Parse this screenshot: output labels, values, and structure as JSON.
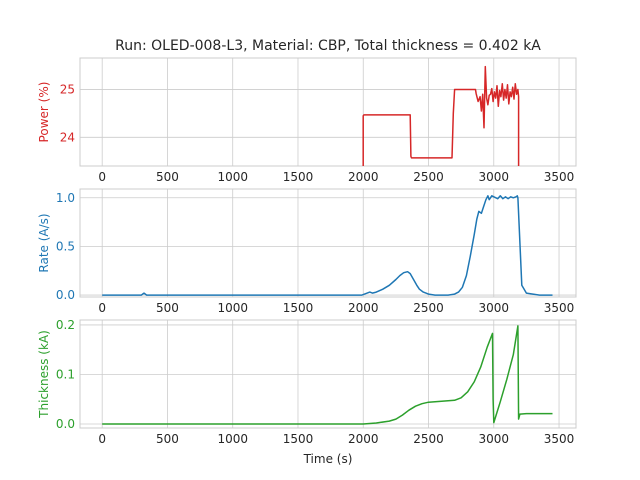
{
  "chart_data": {
    "type": "line",
    "title": "Run: OLED-008-L3, Material: CBP, Total thickness = 0.402 kA",
    "xlabel": "Time (s)",
    "xlim": [
      -170,
      3630
    ],
    "xticks": [
      0,
      500,
      1000,
      1500,
      2000,
      2500,
      3000,
      3500
    ],
    "grid": true,
    "panels": [
      {
        "id": "power",
        "ylabel": "Power (%)",
        "color": "#d62728",
        "ylim": [
          23.4,
          25.66
        ],
        "yticks": [
          24,
          25
        ],
        "x": [
          2000,
          2000,
          2005,
          2360,
          2365,
          2370,
          2680,
          2690,
          2700,
          2860,
          2865,
          2880,
          2895,
          2905,
          2915,
          2925,
          2935,
          2945,
          2955,
          2965,
          2975,
          2985,
          2995,
          3005,
          3015,
          3025,
          3035,
          3045,
          3055,
          3065,
          3075,
          3085,
          3095,
          3105,
          3115,
          3125,
          3135,
          3145,
          3155,
          3165,
          3175,
          3185,
          3190,
          3190
        ],
        "values": [
          23.4,
          24.45,
          24.47,
          24.47,
          23.6,
          23.57,
          23.57,
          24.5,
          25.0,
          25.0,
          24.92,
          24.75,
          24.85,
          24.55,
          24.9,
          24.2,
          25.48,
          24.82,
          24.68,
          24.88,
          24.9,
          25.02,
          24.75,
          24.95,
          24.82,
          25.08,
          24.65,
          24.98,
          24.85,
          25.12,
          24.78,
          25.0,
          24.82,
          25.1,
          24.7,
          24.95,
          24.85,
          25.05,
          24.8,
          25.12,
          24.9,
          25.0,
          24.85,
          23.4
        ]
      },
      {
        "id": "rate",
        "ylabel": "Rate (A/s)",
        "color": "#1f77b4",
        "ylim": [
          -0.02,
          1.09
        ],
        "yticks": [
          0.0,
          0.5,
          1.0
        ],
        "yticklabels": [
          "0.0",
          "0.5",
          "1.0"
        ],
        "x": [
          0,
          300,
          320,
          340,
          360,
          1000,
          1500,
          1990,
          2030,
          2050,
          2070,
          2100,
          2150,
          2200,
          2250,
          2280,
          2310,
          2340,
          2360,
          2390,
          2410,
          2430,
          2460,
          2500,
          2550,
          2600,
          2650,
          2700,
          2730,
          2760,
          2790,
          2820,
          2850,
          2870,
          2885,
          2905,
          2920,
          2940,
          2955,
          2965,
          2985,
          3000,
          3030,
          3050,
          3070,
          3090,
          3110,
          3130,
          3150,
          3170,
          3180,
          3185,
          3195,
          3215,
          3250,
          3300,
          3350,
          3400,
          3450
        ],
        "values": [
          0.0,
          0.0,
          0.02,
          0.0,
          0.0,
          0.0,
          0.0,
          0.0,
          0.02,
          0.03,
          0.02,
          0.03,
          0.06,
          0.1,
          0.16,
          0.2,
          0.23,
          0.24,
          0.22,
          0.15,
          0.1,
          0.06,
          0.03,
          0.01,
          0.0,
          0.0,
          0.0,
          0.01,
          0.03,
          0.08,
          0.2,
          0.4,
          0.62,
          0.78,
          0.86,
          0.84,
          0.9,
          0.98,
          1.02,
          0.98,
          1.02,
          1.01,
          0.99,
          1.02,
          0.99,
          1.01,
          0.99,
          1.01,
          1.0,
          1.01,
          1.02,
          1.0,
          0.7,
          0.1,
          0.02,
          0.01,
          0.0,
          0.0,
          0.0
        ]
      },
      {
        "id": "thickness",
        "ylabel": "Thickness (kA)",
        "color": "#2ca02c",
        "ylim": [
          -0.008,
          0.21
        ],
        "yticks": [
          0.0,
          0.1,
          0.2
        ],
        "yticklabels": [
          "0.0",
          "0.1",
          "0.2"
        ],
        "x": [
          0,
          500,
          1000,
          1500,
          2000,
          2100,
          2200,
          2250,
          2300,
          2350,
          2400,
          2450,
          2500,
          2550,
          2600,
          2650,
          2700,
          2750,
          2800,
          2850,
          2900,
          2950,
          2990,
          2995,
          3000,
          3050,
          3100,
          3150,
          3185,
          3190,
          3200,
          3250,
          3300,
          3350,
          3400,
          3450
        ],
        "values": [
          0.0,
          0.0,
          0.0,
          0.0,
          0.0,
          0.002,
          0.006,
          0.01,
          0.018,
          0.028,
          0.036,
          0.041,
          0.044,
          0.045,
          0.046,
          0.047,
          0.048,
          0.053,
          0.065,
          0.085,
          0.115,
          0.155,
          0.183,
          0.05,
          0.003,
          0.045,
          0.09,
          0.14,
          0.198,
          0.01,
          0.02,
          0.021,
          0.021,
          0.021,
          0.021,
          0.021
        ]
      }
    ]
  }
}
